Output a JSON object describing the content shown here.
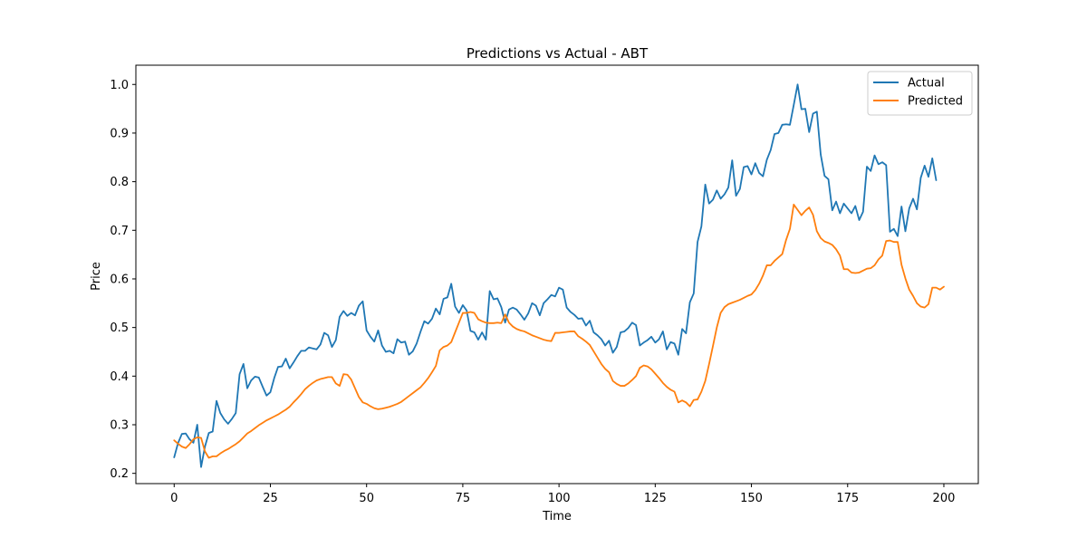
{
  "chart_data": {
    "type": "line",
    "title": "Predictions vs Actual - ABT",
    "xlabel": "Time",
    "ylabel": "Price",
    "xlim": [
      -9.95,
      208.95
    ],
    "ylim": [
      0.1789,
      1.0396
    ],
    "xticks": [
      0,
      25,
      50,
      75,
      100,
      125,
      150,
      175,
      200
    ],
    "yticks": [
      0.2,
      0.3,
      0.4,
      0.5,
      0.6,
      0.7,
      0.8,
      0.9,
      1.0
    ],
    "xtick_labels": [
      "0",
      "25",
      "50",
      "75",
      "100",
      "125",
      "150",
      "175",
      "200"
    ],
    "ytick_labels": [
      "0.2",
      "0.3",
      "0.4",
      "0.5",
      "0.6",
      "0.7",
      "0.8",
      "0.9",
      "1.0"
    ],
    "grid": false,
    "legend_position": "top-right",
    "series": [
      {
        "name": "Actual",
        "color": "#1f77b4",
        "values": [
          0.233,
          0.262,
          0.281,
          0.282,
          0.27,
          0.263,
          0.3,
          0.213,
          0.255,
          0.283,
          0.286,
          0.349,
          0.324,
          0.311,
          0.302,
          0.312,
          0.324,
          0.404,
          0.425,
          0.375,
          0.391,
          0.399,
          0.397,
          0.378,
          0.36,
          0.367,
          0.396,
          0.419,
          0.42,
          0.436,
          0.416,
          0.428,
          0.441,
          0.452,
          0.452,
          0.459,
          0.457,
          0.455,
          0.465,
          0.489,
          0.484,
          0.46,
          0.474,
          0.522,
          0.534,
          0.524,
          0.53,
          0.525,
          0.545,
          0.554,
          0.494,
          0.481,
          0.471,
          0.494,
          0.463,
          0.45,
          0.452,
          0.447,
          0.476,
          0.469,
          0.471,
          0.444,
          0.451,
          0.467,
          0.491,
          0.513,
          0.508,
          0.518,
          0.539,
          0.527,
          0.559,
          0.562,
          0.59,
          0.543,
          0.53,
          0.546,
          0.535,
          0.493,
          0.49,
          0.475,
          0.49,
          0.475,
          0.575,
          0.558,
          0.56,
          0.542,
          0.51,
          0.537,
          0.541,
          0.537,
          0.527,
          0.516,
          0.529,
          0.55,
          0.545,
          0.525,
          0.55,
          0.558,
          0.567,
          0.564,
          0.582,
          0.578,
          0.541,
          0.532,
          0.526,
          0.518,
          0.519,
          0.504,
          0.514,
          0.49,
          0.484,
          0.476,
          0.463,
          0.473,
          0.448,
          0.46,
          0.49,
          0.492,
          0.499,
          0.51,
          0.505,
          0.463,
          0.469,
          0.474,
          0.481,
          0.469,
          0.476,
          0.492,
          0.455,
          0.47,
          0.467,
          0.444,
          0.497,
          0.488,
          0.552,
          0.57,
          0.676,
          0.708,
          0.794,
          0.755,
          0.763,
          0.782,
          0.765,
          0.774,
          0.788,
          0.844,
          0.771,
          0.785,
          0.83,
          0.832,
          0.815,
          0.838,
          0.818,
          0.811,
          0.845,
          0.865,
          0.898,
          0.9,
          0.917,
          0.918,
          0.917,
          0.958,
          1.0,
          0.949,
          0.95,
          0.902,
          0.94,
          0.944,
          0.856,
          0.812,
          0.805,
          0.741,
          0.759,
          0.735,
          0.755,
          0.745,
          0.735,
          0.75,
          0.721,
          0.738,
          0.831,
          0.822,
          0.854,
          0.836,
          0.84,
          0.834,
          0.697,
          0.703,
          0.688,
          0.749,
          0.698,
          0.745,
          0.765,
          0.743,
          0.808,
          0.833,
          0.81,
          0.848,
          0.803
        ]
      },
      {
        "name": "Predicted",
        "color": "#ff7f0e",
        "values": [
          0.268,
          0.261,
          0.255,
          0.252,
          0.26,
          0.27,
          0.274,
          0.273,
          0.245,
          0.232,
          0.235,
          0.235,
          0.241,
          0.246,
          0.25,
          0.255,
          0.26,
          0.266,
          0.274,
          0.282,
          0.287,
          0.293,
          0.299,
          0.304,
          0.309,
          0.313,
          0.317,
          0.321,
          0.326,
          0.331,
          0.337,
          0.346,
          0.354,
          0.363,
          0.373,
          0.38,
          0.386,
          0.391,
          0.394,
          0.396,
          0.398,
          0.398,
          0.385,
          0.38,
          0.404,
          0.403,
          0.393,
          0.375,
          0.357,
          0.346,
          0.343,
          0.338,
          0.334,
          0.332,
          0.333,
          0.335,
          0.337,
          0.34,
          0.343,
          0.347,
          0.353,
          0.359,
          0.365,
          0.371,
          0.377,
          0.386,
          0.396,
          0.408,
          0.421,
          0.453,
          0.46,
          0.463,
          0.47,
          0.49,
          0.51,
          0.53,
          0.53,
          0.532,
          0.53,
          0.517,
          0.513,
          0.51,
          0.509,
          0.509,
          0.51,
          0.509,
          0.527,
          0.51,
          0.502,
          0.497,
          0.494,
          0.492,
          0.488,
          0.484,
          0.481,
          0.478,
          0.475,
          0.473,
          0.472,
          0.489,
          0.489,
          0.49,
          0.491,
          0.492,
          0.492,
          0.482,
          0.477,
          0.471,
          0.464,
          0.451,
          0.438,
          0.425,
          0.415,
          0.408,
          0.39,
          0.384,
          0.38,
          0.38,
          0.385,
          0.392,
          0.4,
          0.417,
          0.422,
          0.42,
          0.414,
          0.405,
          0.396,
          0.386,
          0.378,
          0.372,
          0.368,
          0.346,
          0.35,
          0.346,
          0.338,
          0.351,
          0.352,
          0.368,
          0.39,
          0.425,
          0.462,
          0.5,
          0.53,
          0.542,
          0.548,
          0.551,
          0.554,
          0.557,
          0.561,
          0.565,
          0.568,
          0.577,
          0.59,
          0.607,
          0.628,
          0.628,
          0.637,
          0.644,
          0.651,
          0.68,
          0.703,
          0.753,
          0.742,
          0.731,
          0.74,
          0.747,
          0.732,
          0.698,
          0.684,
          0.677,
          0.674,
          0.67,
          0.661,
          0.648,
          0.62,
          0.62,
          0.613,
          0.612,
          0.613,
          0.617,
          0.621,
          0.622,
          0.628,
          0.64,
          0.648,
          0.678,
          0.679,
          0.676,
          0.676,
          0.629,
          0.601,
          0.578,
          0.565,
          0.55,
          0.543,
          0.541,
          0.548,
          0.582,
          0.582,
          0.578,
          0.584
        ]
      }
    ]
  }
}
